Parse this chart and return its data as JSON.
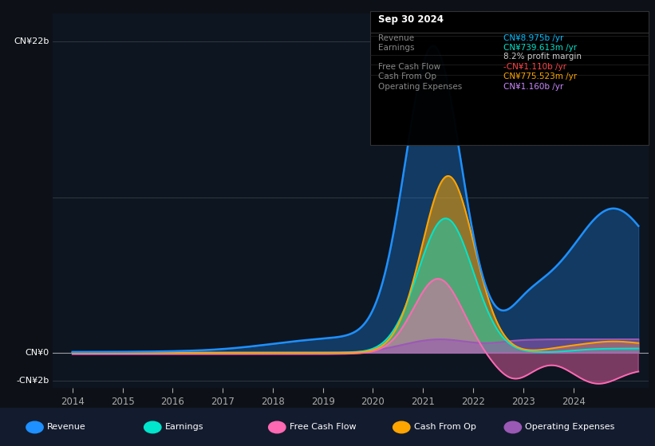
{
  "background_color": "#0d1117",
  "chart_bg": "#0d1520",
  "y_label_top": "CN¥22b",
  "y_label_zero": "CN¥0",
  "y_label_neg": "-CN¥2b",
  "x_ticks": [
    "2014",
    "2015",
    "2016",
    "2017",
    "2018",
    "2019",
    "2020",
    "2021",
    "2022",
    "2023",
    "2024"
  ],
  "tooltip_title": "Sep 30 2024",
  "tooltip_rows": [
    {
      "label": "Revenue",
      "value": "CN¥8.975b /yr",
      "color": "#00bfff"
    },
    {
      "label": "Earnings",
      "value": "CN¥739.613m /yr",
      "color": "#00e5cc"
    },
    {
      "label": "",
      "value": "8.2% profit margin",
      "color": "#cccccc"
    },
    {
      "label": "Free Cash Flow",
      "value": "-CN¥1.110b /yr",
      "color": "#ff4444"
    },
    {
      "label": "Cash From Op",
      "value": "CN¥775.523m /yr",
      "color": "#ffa500"
    },
    {
      "label": "Operating Expenses",
      "value": "CN¥1.160b /yr",
      "color": "#9b59b6"
    }
  ],
  "legend": [
    {
      "label": "Revenue",
      "color": "#1e90ff"
    },
    {
      "label": "Earnings",
      "color": "#00e5cc"
    },
    {
      "label": "Free Cash Flow",
      "color": "#ff69b4"
    },
    {
      "label": "Cash From Op",
      "color": "#ffa500"
    },
    {
      "label": "Operating Expenses",
      "color": "#9b59b6"
    }
  ],
  "ylim": [
    -2500000000.0,
    24000000000.0
  ],
  "revenue_color": "#1e90ff",
  "earnings_color": "#00e5cc",
  "fcf_color": "#ff69b4",
  "cashfromop_color": "#ffa500",
  "opex_color": "#9b59b6"
}
